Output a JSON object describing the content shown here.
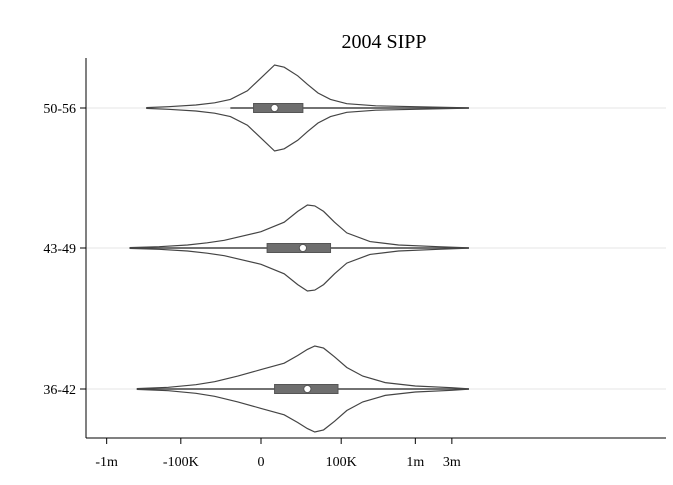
{
  "chart_data": {
    "type": "violin",
    "title": "2004 SIPP",
    "orientation": "horizontal",
    "x_ticks": [
      "-1m",
      "-100K",
      "0",
      "100K",
      "1m",
      "3m"
    ],
    "x_scale": "symmetric-log",
    "grid": "horizontal",
    "categories": [
      "50-56",
      "43-49",
      "36-42"
    ],
    "series": [
      {
        "category": "50-56",
        "box": {
          "whisker_low": -15000,
          "q1": -2500,
          "median": 5000,
          "q3": 25000,
          "whisker_high": 5000000
        },
        "density": [
          [
            -300000,
            0.01
          ],
          [
            -150000,
            0.03
          ],
          [
            -60000,
            0.07
          ],
          [
            -30000,
            0.12
          ],
          [
            -15000,
            0.2
          ],
          [
            -5000,
            0.4
          ],
          [
            0,
            0.7
          ],
          [
            5000,
            1.0
          ],
          [
            10000,
            0.95
          ],
          [
            20000,
            0.75
          ],
          [
            30000,
            0.55
          ],
          [
            45000,
            0.35
          ],
          [
            70000,
            0.2
          ],
          [
            120000,
            0.1
          ],
          [
            300000,
            0.05
          ],
          [
            1000000,
            0.03
          ],
          [
            5000000,
            0.005
          ]
        ]
      },
      {
        "category": "43-49",
        "box": {
          "whisker_low": -500000,
          "q1": 2000,
          "median": 25000,
          "q3": 70000,
          "whisker_high": 5000000
        },
        "density": [
          [
            -500000,
            0.01
          ],
          [
            -200000,
            0.03
          ],
          [
            -80000,
            0.07
          ],
          [
            -40000,
            0.12
          ],
          [
            -20000,
            0.18
          ],
          [
            0,
            0.38
          ],
          [
            10000,
            0.6
          ],
          [
            20000,
            0.85
          ],
          [
            30000,
            1.0
          ],
          [
            40000,
            0.98
          ],
          [
            55000,
            0.85
          ],
          [
            80000,
            0.6
          ],
          [
            120000,
            0.35
          ],
          [
            250000,
            0.15
          ],
          [
            600000,
            0.07
          ],
          [
            2000000,
            0.03
          ],
          [
            5000000,
            0.005
          ]
        ]
      },
      {
        "category": "36-42",
        "box": {
          "whisker_low": -400000,
          "q1": 5000,
          "median": 30000,
          "q3": 90000,
          "whisker_high": 5000000
        },
        "density": [
          [
            -400000,
            0.01
          ],
          [
            -150000,
            0.04
          ],
          [
            -60000,
            0.1
          ],
          [
            -30000,
            0.17
          ],
          [
            -10000,
            0.3
          ],
          [
            0,
            0.45
          ],
          [
            10000,
            0.6
          ],
          [
            20000,
            0.78
          ],
          [
            30000,
            0.92
          ],
          [
            40000,
            1.0
          ],
          [
            55000,
            0.95
          ],
          [
            80000,
            0.75
          ],
          [
            120000,
            0.5
          ],
          [
            200000,
            0.3
          ],
          [
            400000,
            0.15
          ],
          [
            1000000,
            0.07
          ],
          [
            3000000,
            0.03
          ],
          [
            5000000,
            0.005
          ]
        ]
      }
    ]
  }
}
